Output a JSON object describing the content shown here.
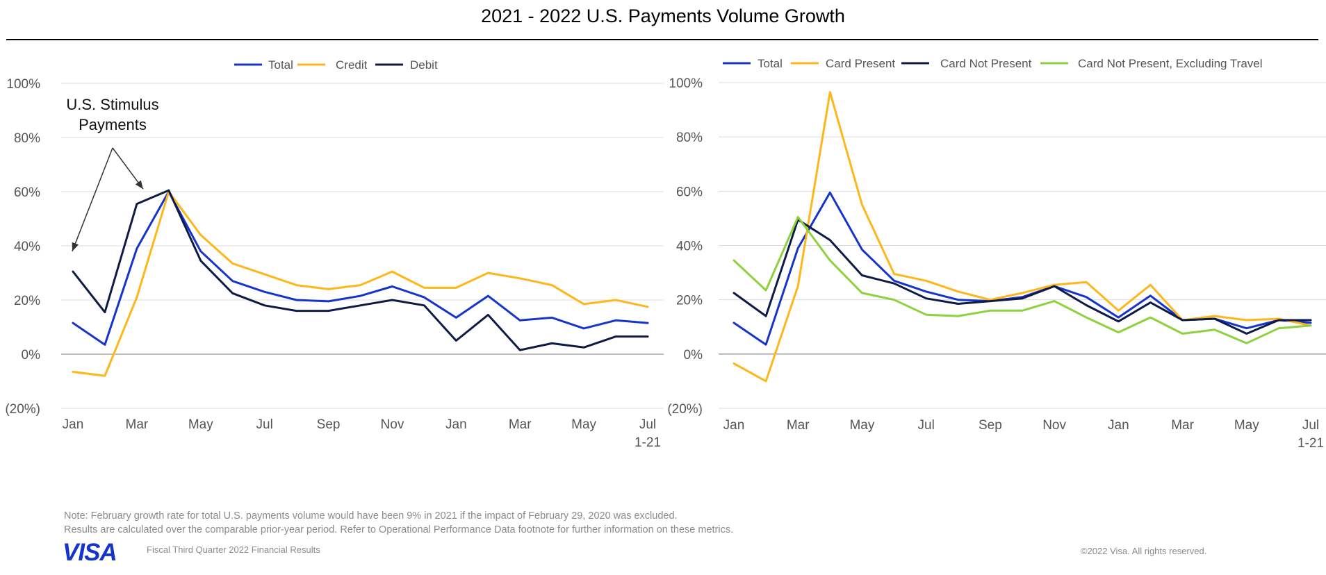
{
  "page": {
    "title": "2021 - 2022 U.S. Payments Volume Growth"
  },
  "chart_data": [
    {
      "type": "line",
      "title": "",
      "xlabel": "",
      "ylabel": "",
      "ylim": [
        -20,
        100
      ],
      "y_ticks": [
        "100%",
        "80%",
        "60%",
        "40%",
        "20%",
        "0%",
        "(20%)"
      ],
      "y_tick_values": [
        100,
        80,
        60,
        40,
        20,
        0,
        -20
      ],
      "x": [
        1,
        2,
        3,
        4,
        5,
        6,
        7,
        8,
        9,
        10,
        11,
        12,
        13,
        14,
        15,
        16,
        17,
        18,
        19
      ],
      "x_tick_labels": [
        {
          "x": 1,
          "label": "Jan"
        },
        {
          "x": 3,
          "label": "Mar"
        },
        {
          "x": 5,
          "label": "May"
        },
        {
          "x": 7,
          "label": "Jul"
        },
        {
          "x": 9,
          "label": "Sep"
        },
        {
          "x": 11,
          "label": "Nov"
        },
        {
          "x": 13,
          "label": "Jan"
        },
        {
          "x": 15,
          "label": "Mar"
        },
        {
          "x": 17,
          "label": "May"
        },
        {
          "x": 19,
          "label": "Jul",
          "sublabel": "1-21"
        }
      ],
      "legend_position": "top-center",
      "grid": true,
      "series": [
        {
          "name": "Total",
          "color": "#1434CB",
          "values": [
            11.5,
            3.5,
            39,
            60,
            38,
            27,
            23,
            20,
            19.5,
            21.5,
            25,
            21,
            13.5,
            21.5,
            12.5,
            13.5,
            9.5,
            12.5,
            11.5
          ]
        },
        {
          "name": "Credit",
          "color": "#FDB71A",
          "values": [
            -6.5,
            -8,
            21,
            60,
            44,
            33.5,
            29.5,
            25.5,
            24,
            25.5,
            30.5,
            24.5,
            24.5,
            30,
            28,
            25.5,
            18.5,
            20,
            17.5
          ]
        },
        {
          "name": "Debit",
          "color": "#0E1C45",
          "values": [
            30.5,
            15.5,
            55.5,
            60.5,
            34.5,
            22.5,
            18,
            16,
            16,
            18,
            20,
            18,
            5,
            14.5,
            1.5,
            4,
            2.5,
            6.5,
            6.5
          ]
        }
      ],
      "annotations": [
        {
          "text_lines": [
            "U.S. Stimulus",
            "Payments"
          ],
          "arrow_targets_x": [
            1,
            3
          ],
          "arrow_target_values": [
            38,
            62
          ]
        }
      ]
    },
    {
      "type": "line",
      "title": "",
      "xlabel": "",
      "ylabel": "",
      "ylim": [
        -20,
        100
      ],
      "y_ticks": [
        "100%",
        "80%",
        "60%",
        "40%",
        "20%",
        "0%",
        "(20%)"
      ],
      "y_tick_values": [
        100,
        80,
        60,
        40,
        20,
        0,
        -20
      ],
      "x": [
        1,
        2,
        3,
        4,
        5,
        6,
        7,
        8,
        9,
        10,
        11,
        12,
        13,
        14,
        15,
        16,
        17,
        18,
        19
      ],
      "x_tick_labels": [
        {
          "x": 1,
          "label": "Jan"
        },
        {
          "x": 3,
          "label": "Mar"
        },
        {
          "x": 5,
          "label": "May"
        },
        {
          "x": 7,
          "label": "Jul"
        },
        {
          "x": 9,
          "label": "Sep"
        },
        {
          "x": 11,
          "label": "Nov"
        },
        {
          "x": 13,
          "label": "Jan"
        },
        {
          "x": 15,
          "label": "Mar"
        },
        {
          "x": 17,
          "label": "May"
        },
        {
          "x": 19,
          "label": "Jul",
          "sublabel": "1-21"
        }
      ],
      "legend_position": "top-center",
      "grid": true,
      "series": [
        {
          "name": "Total",
          "color": "#1434CB",
          "values": [
            11.5,
            3.5,
            39,
            59.5,
            38.5,
            27,
            23,
            20,
            19.5,
            21,
            25,
            21,
            13.5,
            21.5,
            12.5,
            13,
            9.5,
            12.5,
            11.5
          ]
        },
        {
          "name": "Card Present",
          "color": "#FDB71A",
          "values": [
            -3.5,
            -10,
            25,
            96.5,
            55,
            29.5,
            27,
            23,
            20,
            22.5,
            25.5,
            26.5,
            16,
            25.5,
            12.5,
            14,
            12.5,
            13,
            10.5
          ]
        },
        {
          "name": "Card Not Present",
          "color": "#0E1C45",
          "values": [
            22.5,
            14,
            49.5,
            42,
            29,
            26,
            20.5,
            18.5,
            19.5,
            20.5,
            25,
            18,
            12,
            19,
            12.5,
            13,
            7.5,
            12.5,
            12.5
          ]
        },
        {
          "name": "Card Not Present, Excluding Travel",
          "color": "#8CD23E",
          "values": [
            34.5,
            23.5,
            50.5,
            34.5,
            22.5,
            20,
            14.5,
            14,
            16,
            16,
            19.5,
            13.5,
            8,
            13.5,
            7.5,
            9,
            4,
            9.5,
            10.5
          ]
        }
      ]
    }
  ],
  "footer": {
    "note_line1": "Note: February growth rate for total U.S. payments volume would have been 9% in 2021 if the impact of February 29, 2020 was excluded.",
    "note_line2": "Results are calculated over the comparable prior-year period. Refer to Operational Performance Data footnote for further information on these metrics.",
    "logo_text": "VISA",
    "left_text": "Fiscal Third Quarter 2022 Financial Results",
    "right_text": "©2022 Visa. All rights reserved."
  },
  "colors": {
    "brand_blue": "#1434CB",
    "grid": "#dcdcdc",
    "zero_line": "#999999",
    "axis_text": "#555555"
  }
}
